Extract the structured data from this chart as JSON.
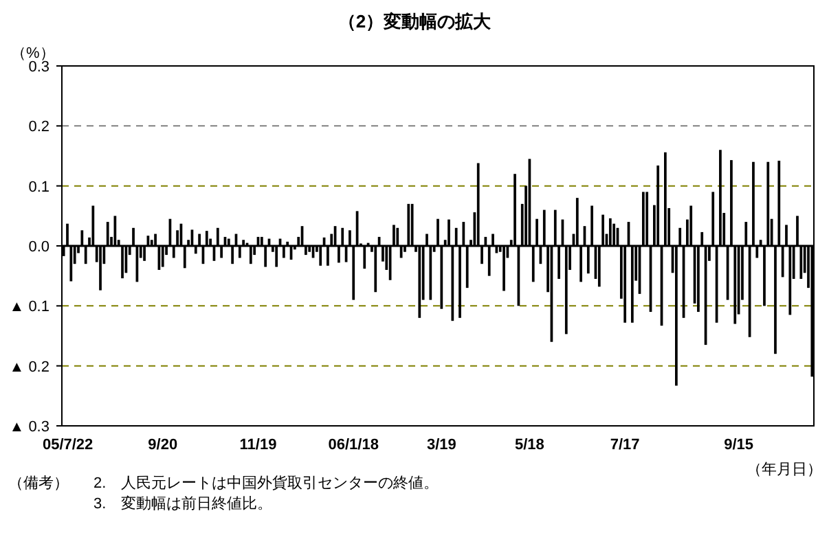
{
  "chart_data": {
    "type": "bar",
    "title": "（2）変動幅の拡大",
    "ylabel": "（%）",
    "xlabel": "（年月日）",
    "annotations": [
      "（備考）",
      "2.　人民元レートは中国外貨取引センターの終値。",
      "3.　変動幅は前日終値比。"
    ],
    "categories": [
      "05/7/22",
      null,
      null,
      null,
      null,
      null,
      null,
      null,
      null,
      null,
      null,
      null,
      null,
      null,
      null,
      null,
      null,
      null,
      null,
      null,
      null,
      null,
      null,
      null,
      null,
      null,
      null,
      "9/20",
      null,
      null,
      null,
      null,
      null,
      null,
      null,
      null,
      null,
      null,
      null,
      null,
      null,
      null,
      null,
      null,
      null,
      null,
      null,
      null,
      null,
      null,
      null,
      null,
      null,
      "11/19",
      null,
      null,
      null,
      null,
      null,
      null,
      null,
      null,
      null,
      null,
      null,
      null,
      null,
      null,
      null,
      null,
      null,
      null,
      null,
      null,
      null,
      null,
      null,
      null,
      null,
      "06/1/18",
      null,
      null,
      null,
      null,
      null,
      null,
      null,
      null,
      null,
      null,
      null,
      null,
      null,
      null,
      null,
      null,
      null,
      null,
      null,
      null,
      null,
      null,
      null,
      "3/19",
      null,
      null,
      null,
      null,
      null,
      null,
      null,
      null,
      null,
      null,
      null,
      null,
      null,
      null,
      null,
      null,
      null,
      null,
      null,
      null,
      null,
      null,
      null,
      "5/18",
      null,
      null,
      null,
      null,
      null,
      null,
      null,
      null,
      null,
      null,
      null,
      null,
      null,
      null,
      null,
      null,
      null,
      null,
      null,
      null,
      null,
      null,
      null,
      null,
      null,
      "7/17",
      null,
      null,
      null,
      null,
      null,
      null,
      null,
      null,
      null,
      null,
      null,
      null,
      null,
      null,
      null,
      null,
      null,
      null,
      null,
      null,
      null,
      null,
      null,
      null,
      null,
      null,
      null,
      null,
      null,
      null,
      "9/15",
      null,
      null,
      null,
      null,
      null,
      null,
      null,
      null,
      null,
      null,
      null,
      null,
      null,
      null,
      null,
      null,
      null,
      null,
      null,
      null
    ],
    "values": [
      -0.017,
      0.037,
      -0.059,
      -0.03,
      -0.012,
      0.026,
      -0.03,
      0.014,
      0.067,
      -0.027,
      -0.074,
      -0.03,
      0.04,
      0.015,
      0.05,
      0.01,
      -0.054,
      -0.045,
      -0.015,
      0.03,
      -0.06,
      -0.02,
      -0.025,
      0.017,
      0.01,
      0.02,
      -0.04,
      -0.035,
      -0.015,
      0.045,
      -0.02,
      0.026,
      0.037,
      -0.037,
      0.01,
      0.027,
      -0.013,
      0.02,
      -0.03,
      0.025,
      0.012,
      -0.025,
      0.03,
      -0.02,
      0.015,
      0.012,
      -0.03,
      0.02,
      -0.02,
      0.01,
      0.005,
      -0.03,
      -0.015,
      0.015,
      0.015,
      -0.035,
      0.012,
      -0.01,
      -0.035,
      0.012,
      -0.02,
      0.007,
      -0.023,
      -0.006,
      0.015,
      0.033,
      -0.015,
      -0.01,
      -0.02,
      -0.01,
      -0.033,
      0.014,
      -0.033,
      0.02,
      0.033,
      -0.028,
      0.03,
      -0.027,
      0.026,
      -0.09,
      0.058,
      0.004,
      -0.038,
      0.005,
      -0.01,
      -0.077,
      0.015,
      -0.026,
      -0.04,
      -0.057,
      0.035,
      0.03,
      -0.02,
      -0.01,
      0.07,
      0.07,
      -0.01,
      -0.12,
      -0.09,
      0.02,
      -0.09,
      -0.01,
      0.045,
      -0.105,
      0.01,
      0.044,
      -0.125,
      0.03,
      -0.12,
      0.04,
      -0.07,
      0.01,
      0.056,
      0.138,
      -0.03,
      0.015,
      -0.05,
      0.02,
      -0.012,
      -0.01,
      -0.075,
      -0.02,
      0.01,
      0.12,
      -0.1,
      0.07,
      0.1,
      0.145,
      -0.06,
      0.045,
      -0.03,
      0.06,
      -0.077,
      -0.16,
      0.06,
      -0.055,
      0.044,
      -0.147,
      -0.04,
      0.02,
      0.08,
      -0.06,
      0.033,
      -0.046,
      0.067,
      -0.055,
      -0.068,
      0.052,
      0.02,
      0.046,
      0.037,
      0.03,
      -0.088,
      -0.128,
      0.04,
      -0.128,
      -0.058,
      -0.08,
      0.09,
      0.09,
      -0.11,
      0.068,
      0.134,
      -0.133,
      0.156,
      0.063,
      -0.045,
      -0.233,
      0.03,
      -0.12,
      0.044,
      0.067,
      -0.096,
      -0.11,
      0.023,
      -0.165,
      -0.025,
      0.09,
      -0.128,
      0.16,
      0.055,
      -0.09,
      0.143,
      -0.13,
      -0.114,
      -0.09,
      0.04,
      -0.152,
      0.14,
      -0.02,
      0.01,
      -0.1,
      0.14,
      0.045,
      -0.18,
      0.142,
      -0.052,
      0.035,
      -0.115,
      -0.055,
      0.05,
      -0.055,
      -0.045,
      -0.07,
      -0.218
    ],
    "color": "#000000",
    "ylim": [
      -0.3,
      0.3
    ],
    "yticks": [
      {
        "value": -0.3,
        "label": "▲ 0.3"
      },
      {
        "value": -0.2,
        "label": "▲ 0.2"
      },
      {
        "value": -0.1,
        "label": "▲ 0.1"
      },
      {
        "value": 0,
        "label": "0.0"
      },
      0.1,
      0.2,
      0.3
    ],
    "ref_lines": [
      {
        "axis": "y",
        "value": 0.2,
        "color": "#808080",
        "line_style": "dashed"
      },
      {
        "axis": "y",
        "value": 0.1,
        "color": "#808000",
        "line_style": "dashed"
      },
      {
        "axis": "y",
        "value": -0.1,
        "color": "#808000",
        "line_style": "dashed"
      },
      {
        "axis": "y",
        "value": -0.2,
        "color": "#808000",
        "line_style": "dashed"
      }
    ]
  }
}
